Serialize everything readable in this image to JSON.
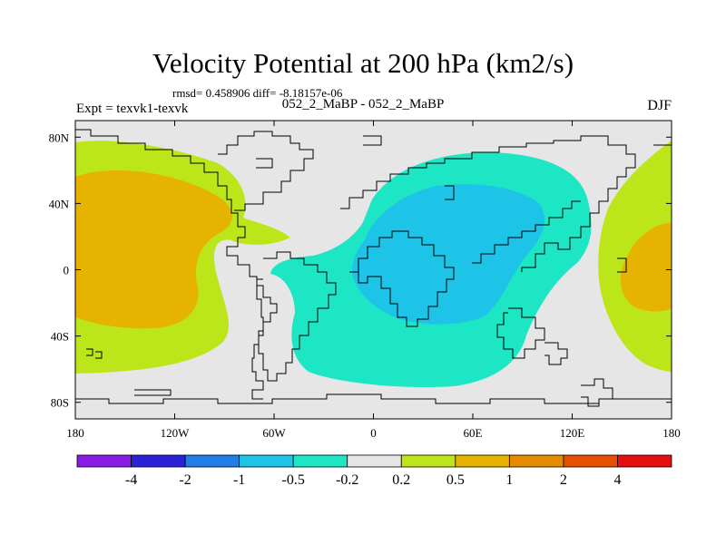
{
  "title": "Velocity Potential at 200 hPa (km2/s)",
  "stats": "rmsd= 0.458906 diff= -8.18157e-06",
  "expt": "Expt = texvk1-texvk",
  "pair": "052_2_MaBP - 052_2_MaBP",
  "season": "DJF",
  "map": {
    "lon_range": [
      -180,
      180
    ],
    "lat_range": [
      -90,
      90
    ],
    "lon_ticks": [
      {
        "value": -180,
        "label": "180"
      },
      {
        "value": -120,
        "label": "120W"
      },
      {
        "value": -60,
        "label": "60W"
      },
      {
        "value": 0,
        "label": "0"
      },
      {
        "value": 60,
        "label": "60E"
      },
      {
        "value": 120,
        "label": "120E"
      },
      {
        "value": 180,
        "label": "180"
      }
    ],
    "lat_ticks": [
      {
        "value": 80,
        "label": "80N"
      },
      {
        "value": 40,
        "label": "40N"
      },
      {
        "value": 0,
        "label": "0"
      },
      {
        "value": -40,
        "label": "40S"
      },
      {
        "value": -80,
        "label": "80S"
      }
    ]
  },
  "colorbar": {
    "labels": [
      "-4",
      "-2",
      "-1",
      "-0.5",
      "-0.2",
      "0.2",
      "0.5",
      "1",
      "2",
      "4"
    ],
    "colors": [
      "#8a1be6",
      "#2a22d8",
      "#1f7fe6",
      "#1ec4e8",
      "#1de6c4",
      "#e6e6e6",
      "#bde61a",
      "#e6b400",
      "#e68a00",
      "#e64e00",
      "#e60e0e"
    ]
  },
  "field_colors": {
    "neutral": "#e6e6e6",
    "pos_0_2": "#bde61a",
    "pos_0_5": "#e6b400",
    "neg_0_2": "#1de6c4",
    "neg_0_5": "#1ec4e8"
  }
}
